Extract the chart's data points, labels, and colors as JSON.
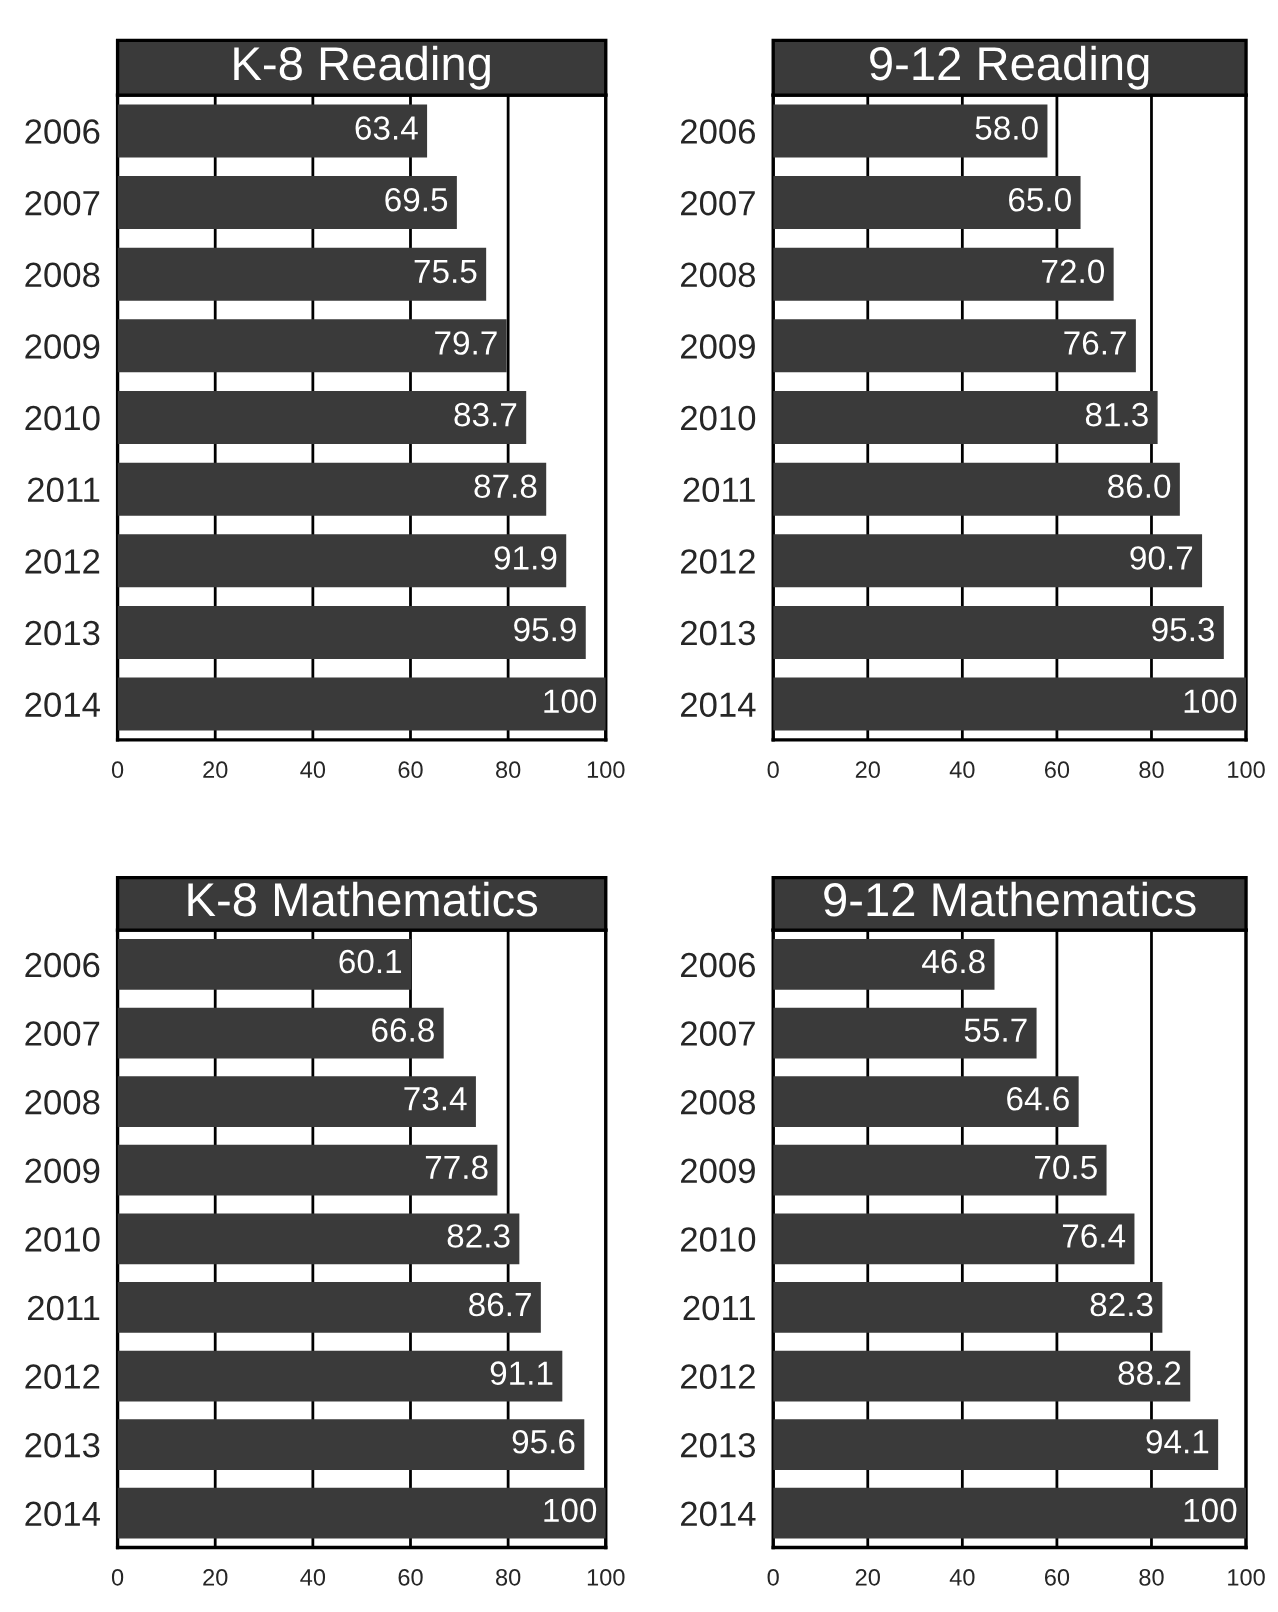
{
  "chart_data": [
    {
      "type": "bar",
      "orientation": "horizontal",
      "title": "K-8 Reading",
      "categories": [
        "2006",
        "2007",
        "2008",
        "2009",
        "2010",
        "2011",
        "2012",
        "2013",
        "2014"
      ],
      "values": [
        63.4,
        69.5,
        75.5,
        79.7,
        83.7,
        87.8,
        91.9,
        95.9,
        100
      ],
      "value_labels": [
        "63.4",
        "69.5",
        "75.5",
        "79.7",
        "83.7",
        "87.8",
        "91.9",
        "95.9",
        "100"
      ],
      "color": "#3a3a3a",
      "xlim": [
        0,
        100
      ],
      "xticks": [
        0,
        20,
        40,
        60,
        80,
        100
      ],
      "grid": "x"
    },
    {
      "type": "bar",
      "orientation": "horizontal",
      "title": "9-12 Reading",
      "categories": [
        "2006",
        "2007",
        "2008",
        "2009",
        "2010",
        "2011",
        "2012",
        "2013",
        "2014"
      ],
      "values": [
        58.0,
        65.0,
        72.0,
        76.7,
        81.3,
        86.0,
        90.7,
        95.3,
        100
      ],
      "value_labels": [
        "58.0",
        "65.0",
        "72.0",
        "76.7",
        "81.3",
        "86.0",
        "90.7",
        "95.3",
        "100"
      ],
      "color": "#3a3a3a",
      "xlim": [
        0,
        100
      ],
      "xticks": [
        0,
        20,
        40,
        60,
        80,
        100
      ],
      "grid": "x"
    },
    {
      "type": "bar",
      "orientation": "horizontal",
      "title": "K-8 Mathematics",
      "categories": [
        "2006",
        "2007",
        "2008",
        "2009",
        "2010",
        "2011",
        "2012",
        "2013",
        "2014"
      ],
      "values": [
        60.1,
        66.8,
        73.4,
        77.8,
        82.3,
        86.7,
        91.1,
        95.6,
        100
      ],
      "value_labels": [
        "60.1",
        "66.8",
        "73.4",
        "77.8",
        "82.3",
        "86.7",
        "91.1",
        "95.6",
        "100"
      ],
      "color": "#3a3a3a",
      "xlim": [
        0,
        100
      ],
      "xticks": [
        0,
        20,
        40,
        60,
        80,
        100
      ],
      "grid": "x"
    },
    {
      "type": "bar",
      "orientation": "horizontal",
      "title": "9-12 Mathematics",
      "categories": [
        "2006",
        "2007",
        "2008",
        "2009",
        "2010",
        "2011",
        "2012",
        "2013",
        "2014"
      ],
      "values": [
        46.8,
        55.7,
        64.6,
        70.5,
        76.4,
        82.3,
        88.2,
        94.1,
        100
      ],
      "value_labels": [
        "46.8",
        "55.7",
        "64.6",
        "70.5",
        "76.4",
        "82.3",
        "88.2",
        "94.1",
        "100"
      ],
      "color": "#3a3a3a",
      "xlim": [
        0,
        100
      ],
      "xticks": [
        0,
        20,
        40,
        60,
        80,
        100
      ],
      "grid": "x"
    }
  ]
}
